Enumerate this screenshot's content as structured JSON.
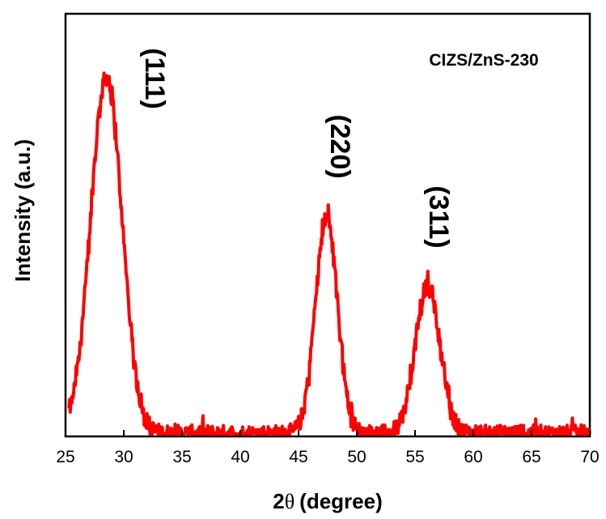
{
  "chart_data": {
    "type": "line",
    "title": "",
    "xlabel": "2θ (degree)",
    "xlabel_main": "2",
    "xlabel_theta": "θ",
    "xlabel_unit": "(degree)",
    "ylabel": "Intensity (a.u.)",
    "xlim": [
      25,
      70
    ],
    "ylim": [
      0,
      100
    ],
    "y_ticks_shown": false,
    "grid": false,
    "legend_position": "top-right",
    "x_ticks": [
      "25",
      "30",
      "35",
      "40",
      "45",
      "50",
      "55",
      "60",
      "65",
      "70"
    ],
    "series": [
      {
        "name": "CIZS/ZnS-230",
        "color": "#ff0000",
        "baseline_noise": 2.5,
        "peaks": [
          {
            "label": "(111)",
            "center": 28.5,
            "height": 98,
            "width": 1.35
          },
          {
            "label": "(220)",
            "center": 47.4,
            "height": 60,
            "width": 0.95
          },
          {
            "label": "(311)",
            "center": 56.1,
            "height": 41,
            "width": 1.05
          }
        ]
      }
    ],
    "peak_labels": [
      "(111)",
      "(220)",
      "(311)"
    ]
  }
}
